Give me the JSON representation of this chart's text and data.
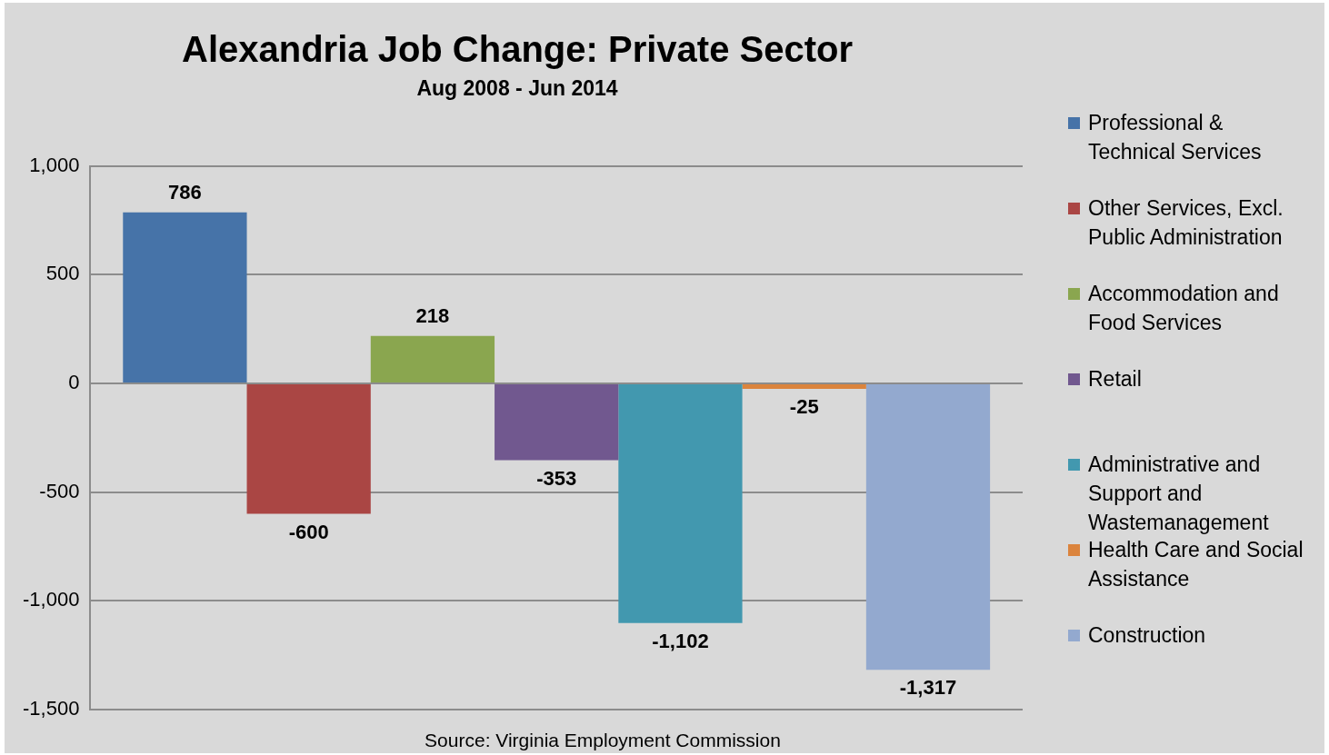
{
  "chart_data": {
    "type": "bar",
    "title": "Alexandria Job Change: Private Sector",
    "subtitle": "Aug 2008 - Jun 2014",
    "categories": [
      null
    ],
    "series": [
      {
        "name": "Professional & Technical Services",
        "color": "#4673a8",
        "values": [
          786
        ],
        "value_labels": [
          "786"
        ]
      },
      {
        "name": "Other Services, Excl. Public Administration",
        "color": "#aa4644",
        "values": [
          -600
        ],
        "value_labels": [
          "-600"
        ]
      },
      {
        "name": "Accommodation and Food Services",
        "color": "#8aa64f",
        "values": [
          218
        ],
        "value_labels": [
          "218"
        ]
      },
      {
        "name": "Retail",
        "color": "#71588f",
        "values": [
          -353
        ],
        "value_labels": [
          "-353"
        ]
      },
      {
        "name": "Administrative and Support and Wastemanagement",
        "color": "#4298af",
        "values": [
          -1102
        ],
        "value_labels": [
          "-1,102"
        ]
      },
      {
        "name": "Health Care and Social Assistance",
        "color": "#db843d",
        "values": [
          -25
        ],
        "value_labels": [
          "-25"
        ]
      },
      {
        "name": "Construction",
        "color": "#93a9cf",
        "values": [
          -1317
        ],
        "value_labels": [
          "-1,317"
        ]
      }
    ],
    "ylim": [
      -1500,
      1000
    ],
    "yticks": [
      {
        "value": -1500,
        "label": "-1,500"
      },
      {
        "value": -1000,
        "label": "-1,000"
      },
      {
        "value": -500,
        "label": "-500"
      },
      0,
      {
        "value": 500,
        "label": "500"
      },
      {
        "value": 1000,
        "label": "1,000"
      }
    ],
    "grid": "y",
    "tick_labels": "y",
    "legend": "right",
    "annotations": [
      "Source: Virginia Employment Commission"
    ]
  }
}
